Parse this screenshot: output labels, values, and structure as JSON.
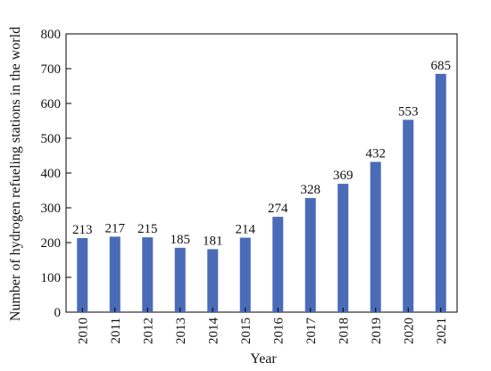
{
  "chart_data": {
    "type": "bar",
    "categories": [
      "2010",
      "2011",
      "2012",
      "2013",
      "2014",
      "2015",
      "2016",
      "2017",
      "2018",
      "2019",
      "2020",
      "2021"
    ],
    "values": [
      213,
      217,
      215,
      185,
      181,
      214,
      274,
      328,
      369,
      432,
      553,
      685
    ],
    "data_labels": [
      "213",
      "217",
      "215",
      "185",
      "181",
      "214",
      "274",
      "328",
      "369",
      "432",
      "553",
      "685"
    ],
    "xlabel": "Year",
    "ylabel": "Number of hydrogen refueling stations in the world",
    "ylim": [
      0,
      800
    ],
    "yticks": [
      "0",
      "100",
      "200",
      "300",
      "400",
      "500",
      "600",
      "700",
      "800"
    ],
    "grid": false,
    "legend": "none",
    "bar_color": "#4a6bb8"
  }
}
